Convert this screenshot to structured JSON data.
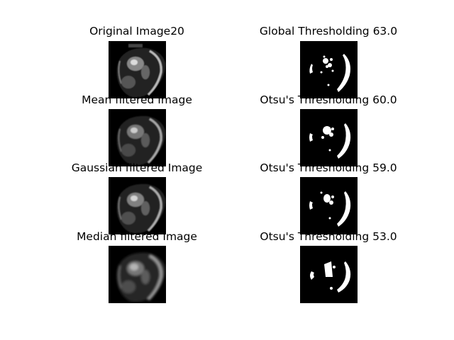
{
  "figure": {
    "panels": [
      {
        "title": "Original Image20",
        "kind": "grayscale",
        "style": "sharp"
      },
      {
        "title": "Global Thresholding 63.0",
        "kind": "binary",
        "style": "global"
      },
      {
        "title": "Mean filtered Image",
        "kind": "grayscale",
        "style": "sharp"
      },
      {
        "title": "Otsu's Thresholding 60.0",
        "kind": "binary",
        "style": "otsu-mean"
      },
      {
        "title": "Gaussian filtered Image",
        "kind": "grayscale",
        "style": "sharp"
      },
      {
        "title": "Otsu's Thresholding 59.0",
        "kind": "binary",
        "style": "otsu-gauss"
      },
      {
        "title": "Median filtered Image",
        "kind": "grayscale",
        "style": "smooth"
      },
      {
        "title": "Otsu's Thresholding 53.0",
        "kind": "binary",
        "style": "otsu-median"
      }
    ],
    "colors": {
      "background": "#ffffff",
      "image_bg": "#000000",
      "foreground": "#ffffff"
    }
  }
}
